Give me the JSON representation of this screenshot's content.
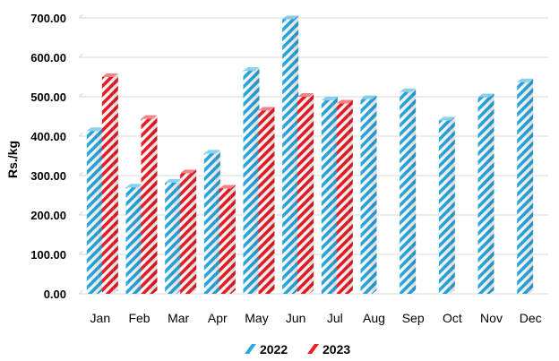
{
  "chart_data": {
    "type": "bar",
    "categories": [
      "Jan",
      "Feb",
      "Mar",
      "Apr",
      "May",
      "Jun",
      "Jul",
      "Aug",
      "Sep",
      "Oct",
      "Nov",
      "Dec"
    ],
    "series": [
      {
        "name": "2022",
        "color": "#29a9e1",
        "values": [
          413,
          270,
          282,
          356,
          566,
          697,
          491,
          494,
          512,
          440,
          499,
          537
        ]
      },
      {
        "name": "2023",
        "color": "#ee1c25",
        "values": [
          550,
          444,
          306,
          267,
          465,
          500,
          483,
          null,
          null,
          null,
          null,
          null
        ]
      }
    ],
    "ylabel": "Rs./kg",
    "ylim": [
      0,
      700
    ],
    "yticks": [
      "0.00",
      "100.00",
      "200.00",
      "300.00",
      "400.00",
      "500.00",
      "600.00",
      "700.00"
    ],
    "grid": true,
    "legend_position": "bottom",
    "style": "3d-striped"
  }
}
